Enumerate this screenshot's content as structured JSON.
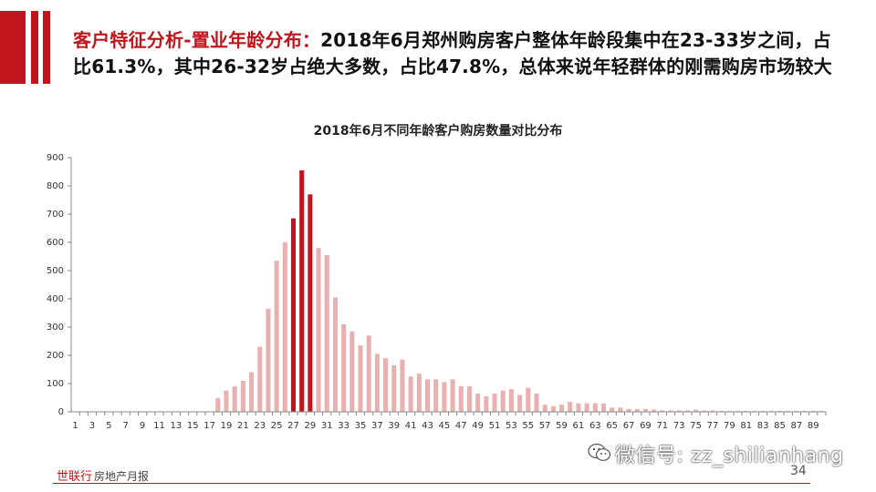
{
  "header": {
    "title_red": "客户特征分析-置业年龄分布：",
    "title_line1": "2018年6月郑州购房客户整体年龄段集中在23-33岁之间，占",
    "title_line2": "比61.3%，其中26-32岁占绝大多数，占比47.8%，总体来说年轻群体的刚需购房市场较大"
  },
  "colors": {
    "accent": "#c0151c",
    "bar_light": "#e8b0b0",
    "bar_dark": "#c0151c"
  },
  "chart_data": {
    "type": "bar",
    "title": "2018年6月不同年龄客户购房数量对比分布",
    "xlabel": "",
    "ylabel": "",
    "ylim": [
      0,
      900
    ],
    "yticks": [
      0,
      100,
      200,
      300,
      400,
      500,
      600,
      700,
      800,
      900
    ],
    "xtick_labels": [
      "1",
      "3",
      "5",
      "7",
      "9",
      "11",
      "13",
      "15",
      "17",
      "19",
      "21",
      "23",
      "25",
      "27",
      "29",
      "31",
      "33",
      "35",
      "37",
      "39",
      "41",
      "43",
      "45",
      "47",
      "49",
      "51",
      "53",
      "55",
      "57",
      "59",
      "61",
      "63",
      "65",
      "67",
      "69",
      "71",
      "73",
      "75",
      "77",
      "79",
      "81",
      "83",
      "85",
      "87",
      "89"
    ],
    "categories": [
      1,
      2,
      3,
      4,
      5,
      6,
      7,
      8,
      9,
      10,
      11,
      12,
      13,
      14,
      15,
      16,
      17,
      18,
      19,
      20,
      21,
      22,
      23,
      24,
      25,
      26,
      27,
      28,
      29,
      30,
      31,
      32,
      33,
      34,
      35,
      36,
      37,
      38,
      39,
      40,
      41,
      42,
      43,
      44,
      45,
      46,
      47,
      48,
      49,
      50,
      51,
      52,
      53,
      54,
      55,
      56,
      57,
      58,
      59,
      60,
      61,
      62,
      63,
      64,
      65,
      66,
      67,
      68,
      69,
      70,
      71,
      72,
      73,
      74,
      75,
      76,
      77,
      78,
      79,
      80,
      81,
      82,
      83,
      84,
      85,
      86,
      87,
      88,
      89,
      90
    ],
    "values": [
      0,
      0,
      0,
      0,
      0,
      0,
      0,
      0,
      0,
      0,
      0,
      0,
      0,
      0,
      0,
      0,
      0,
      48,
      75,
      90,
      110,
      140,
      230,
      365,
      535,
      600,
      685,
      855,
      770,
      580,
      555,
      405,
      310,
      285,
      235,
      270,
      205,
      190,
      165,
      185,
      125,
      135,
      115,
      115,
      105,
      115,
      90,
      90,
      65,
      55,
      65,
      75,
      80,
      60,
      85,
      65,
      25,
      20,
      25,
      35,
      30,
      30,
      30,
      30,
      15,
      15,
      10,
      10,
      10,
      8,
      5,
      5,
      5,
      5,
      8,
      5,
      5,
      3,
      3,
      3,
      3,
      3,
      3,
      3,
      3,
      3,
      3,
      3,
      3,
      3
    ],
    "highlight_categories": [
      27,
      28,
      29
    ],
    "grid": false,
    "legend": "none"
  },
  "footer": {
    "brand": "世联行",
    "brand_sub": "房地产月报",
    "page_number": "34",
    "watermark": "微信号: zz_shilianhang"
  }
}
